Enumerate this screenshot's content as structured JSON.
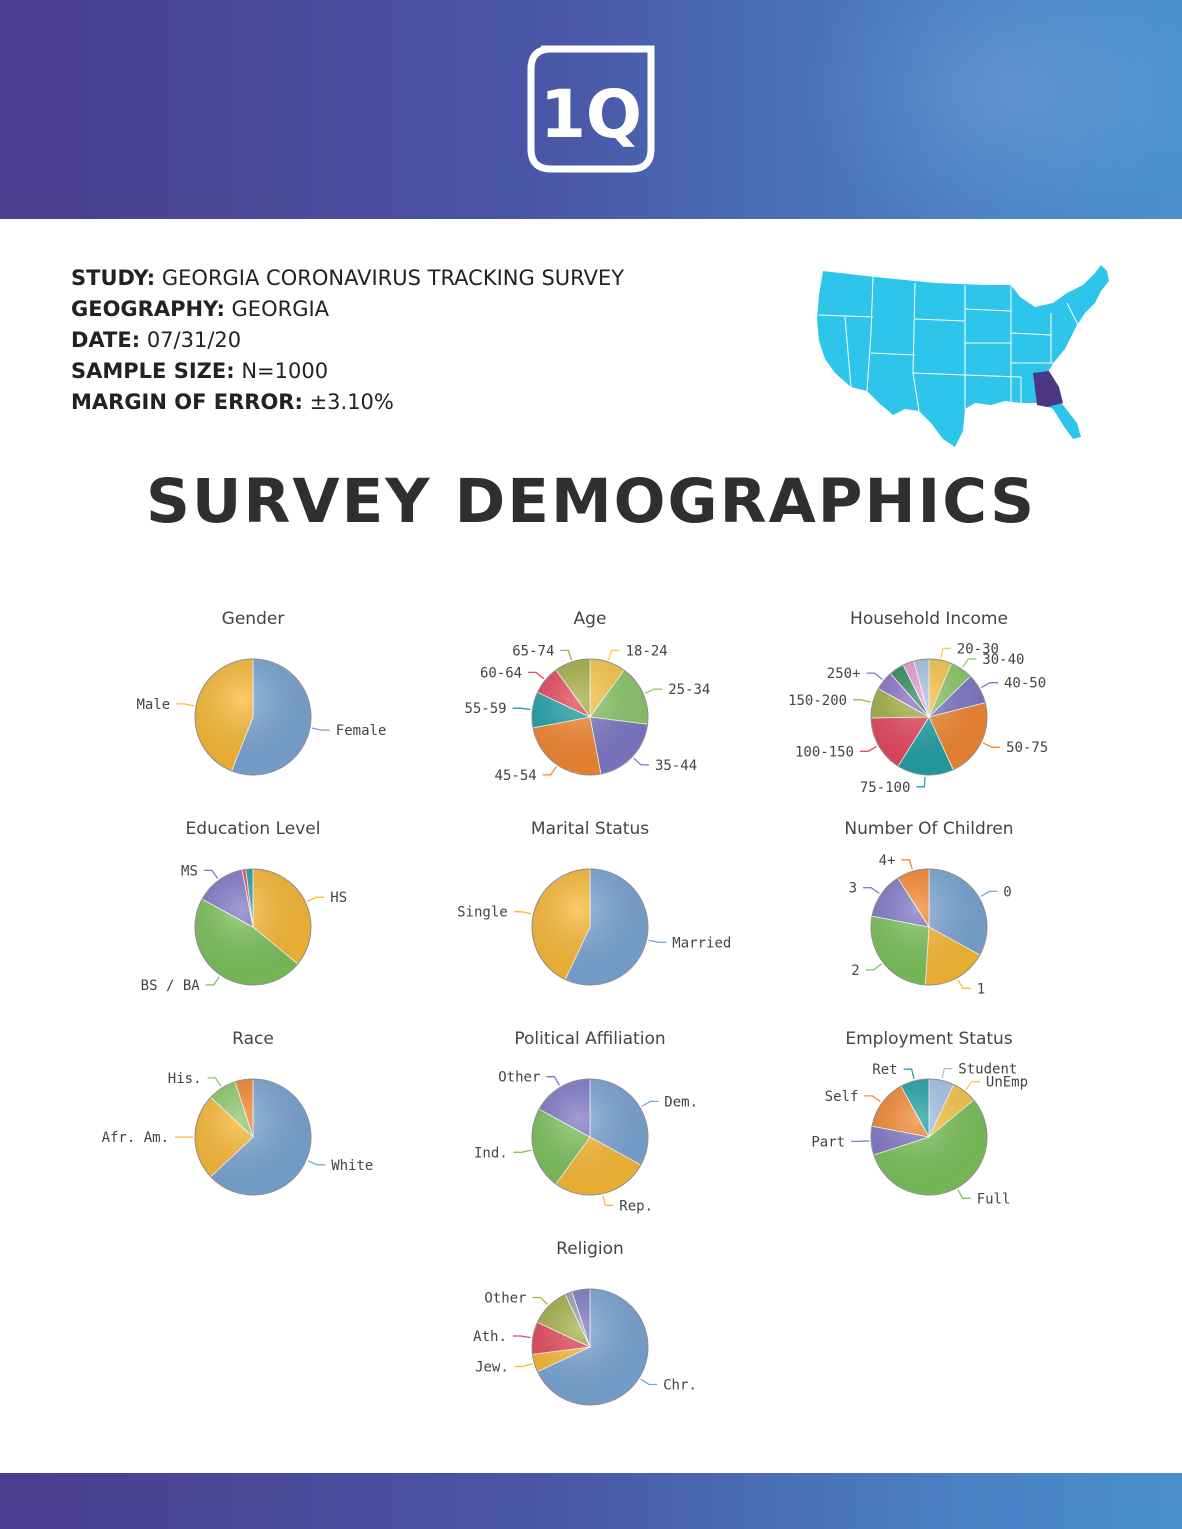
{
  "header": {
    "logo_text": "1Q"
  },
  "study": {
    "rows": [
      {
        "key": "STUDY:",
        "value": "GEORGIA CORONAVIRUS TRACKING SURVEY"
      },
      {
        "key": "GEOGRAPHY:",
        "value": "GEORGIA"
      },
      {
        "key": "DATE:",
        "value": "07/31/20"
      },
      {
        "key": "SAMPLE SIZE:",
        "value": "N=1000"
      },
      {
        "key": "MARGIN OF ERROR:",
        "value": "±3.10%"
      }
    ]
  },
  "map": {
    "base_color": "#2ec5ea",
    "highlight_color": "#4b3683",
    "highlight_state": "Georgia"
  },
  "page_title": "SURVEY DEMOGRAPHICS",
  "chart_data": [
    {
      "type": "pie",
      "title": "Gender",
      "labels": [
        "Female",
        "Male"
      ],
      "values": [
        56,
        44
      ],
      "colors": [
        "#7aa6d6",
        "#fbb933"
      ]
    },
    {
      "type": "pie",
      "title": "Age",
      "labels": [
        "18-24",
        "25-34",
        "35-44",
        "45-54",
        "55-59",
        "60-64",
        "65-74"
      ],
      "values": [
        10,
        17,
        20,
        25,
        10,
        8,
        10
      ],
      "colors": [
        "#fbc94a",
        "#8dc96b",
        "#7f78c8",
        "#f5872f",
        "#1fa1a7",
        "#e6455a",
        "#a5b044"
      ]
    },
    {
      "type": "pie",
      "title": "Household Income",
      "labels": [
        "20-30",
        "30-40",
        "40-50",
        "50-75",
        "75-100",
        "100-150",
        "150-200",
        "250+"
      ],
      "values": [
        6,
        6,
        8,
        21,
        15,
        15,
        8,
        5
      ],
      "colors": [
        "#fbc94a",
        "#8dc96b",
        "#7f78c8",
        "#f5872f",
        "#1fa1a7",
        "#e6455a",
        "#a5b044",
        "#8d6fc8"
      ],
      "extra_slices": [
        {
          "values": [
            4,
            3,
            4
          ],
          "colors": [
            "#2a8a57",
            "#e89ad2",
            "#a8c5e8"
          ]
        }
      ]
    },
    {
      "type": "pie",
      "title": "Education Level",
      "labels": [
        "HS",
        "BS / BA",
        "MS"
      ],
      "values": [
        36,
        47,
        14
      ],
      "colors": [
        "#fbb933",
        "#7cc35a",
        "#7f78c8"
      ],
      "extra_slices": [
        {
          "values": [
            1,
            2
          ],
          "colors": [
            "#e6455a",
            "#1fa1a7"
          ]
        }
      ]
    },
    {
      "type": "pie",
      "title": "Marital Status",
      "labels": [
        "Married",
        "Single"
      ],
      "values": [
        57,
        43
      ],
      "colors": [
        "#7aa6d6",
        "#fbb933"
      ]
    },
    {
      "type": "pie",
      "title": "Number Of Children",
      "labels": [
        "0",
        "1",
        "2",
        "3",
        "4+"
      ],
      "values": [
        33,
        18,
        27,
        13,
        9
      ],
      "colors": [
        "#7aa6d6",
        "#fbb933",
        "#7cc35a",
        "#7f78c8",
        "#f5872f"
      ]
    },
    {
      "type": "pie",
      "title": "Race",
      "labels": [
        "White",
        "Afr. Am.",
        "His."
      ],
      "values": [
        63,
        24,
        8
      ],
      "colors": [
        "#7aa6d6",
        "#fbb933",
        "#8dc96b"
      ],
      "extra_slices": [
        {
          "values": [
            5
          ],
          "colors": [
            "#f5872f"
          ]
        }
      ]
    },
    {
      "type": "pie",
      "title": "Political Affiliation",
      "labels": [
        "Dem.",
        "Rep.",
        "Ind.",
        "Other"
      ],
      "values": [
        33,
        27,
        23,
        17
      ],
      "colors": [
        "#7aa6d6",
        "#fbb933",
        "#7cc35a",
        "#7f78c8"
      ]
    },
    {
      "type": "pie",
      "title": "Employment Status",
      "labels": [
        "Student",
        "UnEmp",
        "Full",
        "Part",
        "Self",
        "Ret"
      ],
      "values": [
        7,
        7,
        56,
        8,
        14,
        8
      ],
      "colors": [
        "#a8c5e8",
        "#fbc94a",
        "#7cc35a",
        "#7f78c8",
        "#f5872f",
        "#1fa1a7"
      ]
    },
    {
      "type": "pie",
      "title": "Religion",
      "labels": [
        "Chr.",
        "Jew.",
        "Ath.",
        "Other"
      ],
      "values": [
        68,
        5,
        9,
        11
      ],
      "colors": [
        "#7aa6d6",
        "#fbb933",
        "#e6455a",
        "#a5b044"
      ],
      "extra_slices": [
        {
          "values": [
            2,
            5
          ],
          "colors": [
            "#9aa0aa",
            "#7f78c8"
          ]
        }
      ]
    }
  ]
}
